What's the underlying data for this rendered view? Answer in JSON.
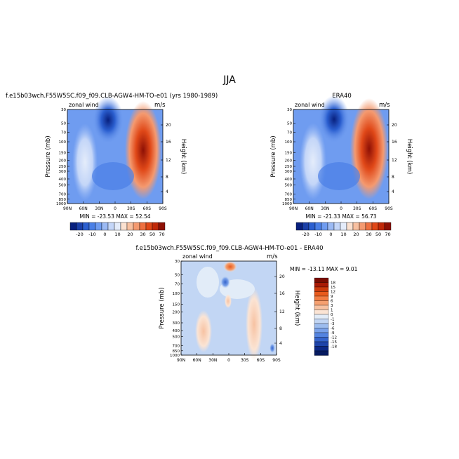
{
  "page": {
    "suptitle": "JJA"
  },
  "chart_data": [
    {
      "type": "heatmap",
      "panel": "model",
      "title": "f.e15b03wch.F55W5SC.f09_f09.CLB-AGW4-HM-TO-e01 (yrs 1980-1989)",
      "variable": "zonal wind",
      "units": "m/s",
      "ylabel": "Pressure (mb)",
      "ylabel_right": "Height (km)",
      "x_ticks": [
        "90N",
        "60N",
        "30N",
        "0",
        "30S",
        "60S",
        "90S"
      ],
      "y_ticks": [
        "30",
        "50",
        "70",
        "100",
        "150",
        "200",
        "250",
        "300",
        "400",
        "500",
        "700",
        "850",
        "1000"
      ],
      "y_ticks_right": [
        "20",
        "16",
        "12",
        "8",
        "4"
      ],
      "min_max": "MIN = -23.53   MAX =  52.54",
      "colorbar": {
        "labels": [
          "-20",
          "-10",
          "0",
          "10",
          "20",
          "30",
          "50",
          "70"
        ],
        "colors": [
          "#08207e",
          "#1a3fa8",
          "#2b5fd0",
          "#4a7fe6",
          "#6f9cf0",
          "#9bbaf4",
          "#c4d6f8",
          "#e4ecfa",
          "#fbe1d0",
          "#f8c0a0",
          "#f49a70",
          "#ee7040",
          "#e04818",
          "#c02808",
          "#8e1005"
        ]
      },
      "xlim": [
        90,
        -90
      ],
      "ylim_pressure_mb": [
        1000,
        30
      ]
    },
    {
      "type": "heatmap",
      "panel": "obs",
      "title": "ERA40",
      "variable": "zonal wind",
      "units": "m/s",
      "ylabel": "Pressure (mb)",
      "ylabel_right": "Height (km)",
      "x_ticks": [
        "90N",
        "60N",
        "30N",
        "0",
        "30S",
        "60S",
        "90S"
      ],
      "y_ticks": [
        "30",
        "50",
        "70",
        "100",
        "150",
        "200",
        "250",
        "300",
        "400",
        "500",
        "700",
        "850",
        "1000"
      ],
      "y_ticks_right": [
        "20",
        "16",
        "12",
        "8",
        "4"
      ],
      "min_max": "MIN = -21.33   MAX =  56.73",
      "colorbar": {
        "labels": [
          "-20",
          "-10",
          "0",
          "10",
          "20",
          "30",
          "50",
          "70"
        ],
        "colors": [
          "#08207e",
          "#1a3fa8",
          "#2b5fd0",
          "#4a7fe6",
          "#6f9cf0",
          "#9bbaf4",
          "#c4d6f8",
          "#e4ecfa",
          "#fbe1d0",
          "#f8c0a0",
          "#f49a70",
          "#ee7040",
          "#e04818",
          "#c02808",
          "#8e1005"
        ]
      },
      "xlim": [
        90,
        -90
      ],
      "ylim_pressure_mb": [
        1000,
        30
      ]
    },
    {
      "type": "heatmap",
      "panel": "difference",
      "title": "f.e15b03wch.F55W5SC.f09_f09.CLB-AGW4-HM-TO-e01  - ERA40",
      "variable": "zonal wind",
      "units": "m/s",
      "ylabel": "Pressure (mb)",
      "ylabel_right": "Height (km)",
      "x_ticks": [
        "90N",
        "60N",
        "30N",
        "0",
        "30S",
        "60S",
        "90S"
      ],
      "y_ticks": [
        "30",
        "50",
        "70",
        "100",
        "150",
        "200",
        "300",
        "400",
        "500",
        "700",
        "850",
        "1000"
      ],
      "y_ticks_right": [
        "20",
        "16",
        "12",
        "8",
        "4"
      ],
      "min_max": "MIN = -13.11   MAX =   9.01",
      "colorbar": {
        "labels": [
          "18",
          "15",
          "12",
          "9",
          "6",
          "3",
          "1",
          "0",
          "-1",
          "-3",
          "-6",
          "-9",
          "-12",
          "-15",
          "-18"
        ],
        "colors": [
          "#7a0c02",
          "#a81a05",
          "#cc3a0c",
          "#e85a1c",
          "#f27c42",
          "#f5a070",
          "#f7c2a2",
          "#fbe4d4",
          "#e2ecf8",
          "#c2d6f4",
          "#9dbdef",
          "#7aa2ea",
          "#5484e0",
          "#3564cc",
          "#1e44aa",
          "#0c2886",
          "#061a60"
        ]
      },
      "xlim": [
        90,
        -90
      ],
      "ylim_pressure_mb": [
        1000,
        30
      ]
    }
  ]
}
